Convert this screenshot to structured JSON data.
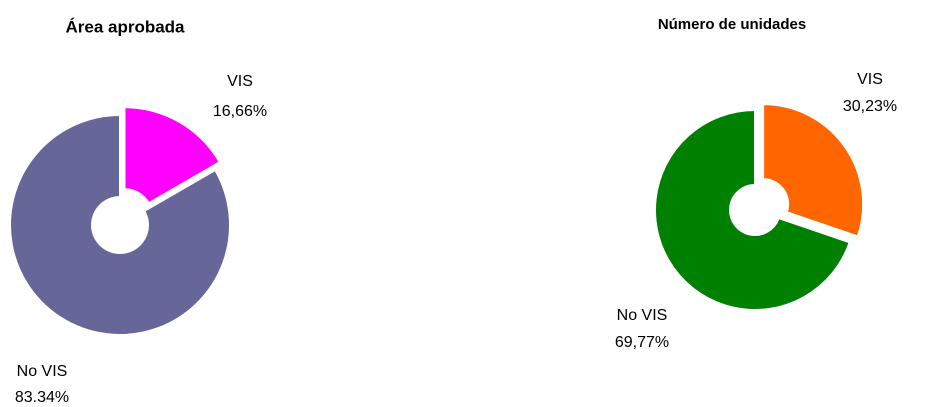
{
  "chart_data": [
    {
      "type": "pie",
      "title": "Área aprobada",
      "categories": [
        "VIS",
        "No VIS"
      ],
      "values": [
        16.66,
        83.34
      ],
      "value_labels": [
        "16,66%",
        "83.34%"
      ],
      "colors": [
        "#ff00ff",
        "#666699"
      ],
      "exploded": [
        true,
        false
      ]
    },
    {
      "type": "pie",
      "title": "Número de unidades",
      "categories": [
        "VIS",
        "No VIS"
      ],
      "values": [
        30.23,
        69.77
      ],
      "value_labels": [
        "30,23%",
        "69,77%"
      ],
      "colors": [
        "#ff6600",
        "#008000"
      ],
      "exploded": [
        true,
        false
      ]
    }
  ]
}
